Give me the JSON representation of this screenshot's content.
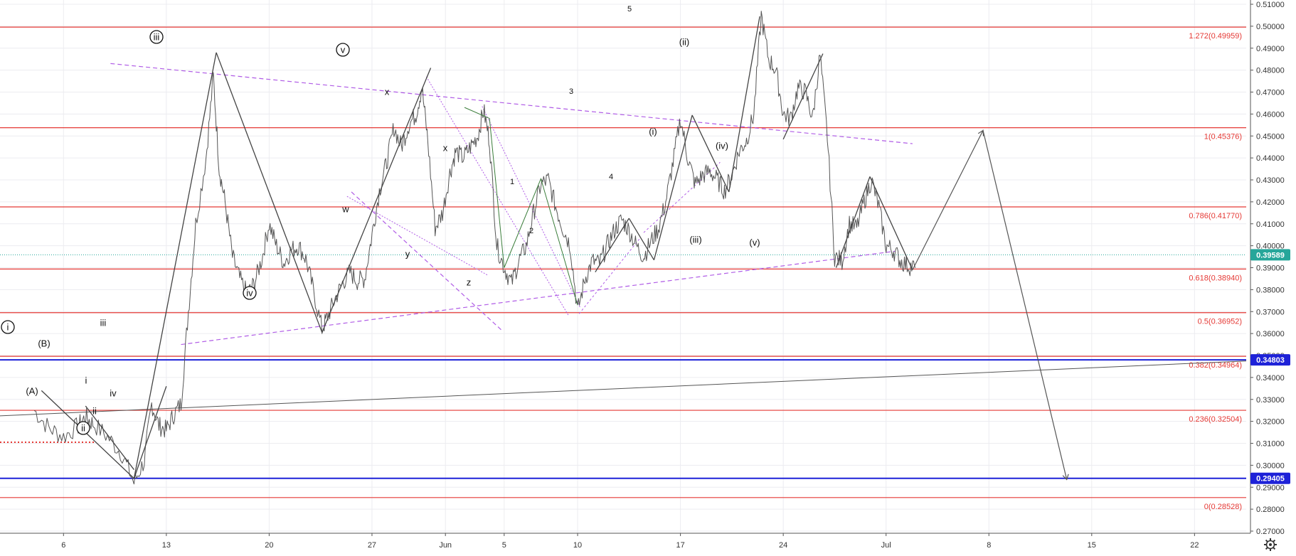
{
  "chart_data": {
    "type": "line",
    "y_axis": {
      "position": "right",
      "ylim": [
        0.2635,
        0.5125
      ],
      "ticks": [
        "0.51000",
        "0.50000",
        "0.49000",
        "0.48000",
        "0.47000",
        "0.46000",
        "0.45000",
        "0.44000",
        "0.43000",
        "0.42000",
        "0.41000",
        "0.40000",
        "0.39000",
        "0.38000",
        "0.37000",
        "0.36000",
        "0.35000",
        "0.34000",
        "0.33000",
        "0.32000",
        "0.31000",
        "0.30000",
        "0.29000",
        "0.28000",
        "0.27000"
      ]
    },
    "x_axis": {
      "start": "May 4",
      "end": "Jul 31",
      "ticks": [
        {
          "label": "6",
          "day": 2
        },
        {
          "label": "13",
          "day": 9
        },
        {
          "label": "20",
          "day": 16
        },
        {
          "label": "27",
          "day": 23
        },
        {
          "label": "Jun",
          "day": 28
        },
        {
          "label": "5",
          "day": 32
        },
        {
          "label": "10",
          "day": 37
        },
        {
          "label": "17",
          "day": 44
        },
        {
          "label": "24",
          "day": 51
        },
        {
          "label": "Jul",
          "day": 58
        },
        {
          "label": "8",
          "day": 65
        },
        {
          "label": "15",
          "day": 72
        },
        {
          "label": "22",
          "day": 79
        }
      ]
    },
    "fib_levels": [
      {
        "label": "1.272(0.49959)",
        "value": 0.49959
      },
      {
        "label": "1(0.45376)",
        "value": 0.45376
      },
      {
        "label": "0.786(0.41770)",
        "value": 0.4177
      },
      {
        "label": "0.618(0.38940)",
        "value": 0.3894
      },
      {
        "label": "0.5(0.36952)",
        "value": 0.36952
      },
      {
        "label": "0.382(0.34964)",
        "value": 0.34964
      },
      {
        "label": "0.236(0.32504)",
        "value": 0.32504
      },
      {
        "label": "0(0.28528)",
        "value": 0.28528
      }
    ],
    "price_badges": [
      {
        "label": "0.39589",
        "value": 0.39589,
        "color": "#26a69a"
      },
      {
        "label": "0.34803",
        "value": 0.34803,
        "color": "#1e22d8"
      },
      {
        "label": "0.29405",
        "value": 0.29405,
        "color": "#1e22d8"
      }
    ],
    "series": [
      {
        "color": "#555555",
        "points": [
          [
            0,
            0.325
          ],
          [
            1,
            0.317
          ],
          [
            2,
            0.313
          ],
          [
            3,
            0.318
          ],
          [
            3.5,
            0.322
          ],
          [
            4,
            0.319
          ],
          [
            5,
            0.313
          ],
          [
            6,
            0.305
          ],
          [
            6.8,
            0.292
          ],
          [
            7.5,
            0.302
          ],
          [
            8,
            0.328
          ],
          [
            8.5,
            0.318
          ],
          [
            9,
            0.316
          ],
          [
            9.5,
            0.323
          ],
          [
            10,
            0.328
          ],
          [
            10.5,
            0.37
          ],
          [
            11,
            0.41
          ],
          [
            11.7,
            0.44
          ],
          [
            12.2,
            0.477
          ],
          [
            12.6,
            0.435
          ],
          [
            13,
            0.42
          ],
          [
            13.5,
            0.395
          ],
          [
            14,
            0.385
          ],
          [
            14.5,
            0.378
          ],
          [
            15,
            0.383
          ],
          [
            15.5,
            0.394
          ],
          [
            16,
            0.41
          ],
          [
            16.5,
            0.4
          ],
          [
            17,
            0.392
          ],
          [
            17.5,
            0.398
          ],
          [
            18,
            0.4
          ],
          [
            18.5,
            0.394
          ],
          [
            19,
            0.38
          ],
          [
            19.6,
            0.362
          ],
          [
            20,
            0.368
          ],
          [
            20.5,
            0.376
          ],
          [
            21,
            0.383
          ],
          [
            21.5,
            0.388
          ],
          [
            22,
            0.384
          ],
          [
            22.5,
            0.385
          ],
          [
            23,
            0.405
          ],
          [
            23.5,
            0.425
          ],
          [
            24,
            0.438
          ],
          [
            24.5,
            0.454
          ],
          [
            25,
            0.445
          ],
          [
            25.5,
            0.455
          ],
          [
            26,
            0.46
          ],
          [
            26.4,
            0.472
          ],
          [
            26.8,
            0.448
          ],
          [
            27.3,
            0.408
          ],
          [
            27.8,
            0.415
          ],
          [
            28.3,
            0.433
          ],
          [
            28.7,
            0.443
          ],
          [
            29.2,
            0.44
          ],
          [
            29.7,
            0.445
          ],
          [
            30.2,
            0.45
          ],
          [
            30.6,
            0.462
          ],
          [
            31,
            0.448
          ],
          [
            31.5,
            0.4
          ],
          [
            32,
            0.39
          ],
          [
            32.5,
            0.383
          ],
          [
            33,
            0.393
          ],
          [
            33.5,
            0.4
          ],
          [
            34,
            0.415
          ],
          [
            34.5,
            0.428
          ],
          [
            35,
            0.43
          ],
          [
            35.5,
            0.418
          ],
          [
            36,
            0.408
          ],
          [
            36.5,
            0.4
          ],
          [
            37,
            0.37
          ],
          [
            37.5,
            0.385
          ],
          [
            38,
            0.393
          ],
          [
            38.5,
            0.392
          ],
          [
            39,
            0.4
          ],
          [
            39.5,
            0.407
          ],
          [
            40,
            0.412
          ],
          [
            40.5,
            0.407
          ],
          [
            41,
            0.4
          ],
          [
            41.5,
            0.395
          ],
          [
            42,
            0.402
          ],
          [
            42.5,
            0.408
          ],
          [
            43,
            0.42
          ],
          [
            43.5,
            0.438
          ],
          [
            44,
            0.458
          ],
          [
            44.5,
            0.44
          ],
          [
            45,
            0.428
          ],
          [
            45.5,
            0.432
          ],
          [
            46,
            0.434
          ],
          [
            46.5,
            0.43
          ],
          [
            47,
            0.425
          ],
          [
            47.5,
            0.432
          ],
          [
            48,
            0.443
          ],
          [
            48.5,
            0.448
          ],
          [
            49,
            0.46
          ],
          [
            49.5,
            0.505
          ],
          [
            50,
            0.485
          ],
          [
            50.5,
            0.48
          ],
          [
            51,
            0.46
          ],
          [
            51.5,
            0.458
          ],
          [
            52,
            0.472
          ],
          [
            52.5,
            0.47
          ],
          [
            53,
            0.458
          ],
          [
            53.5,
            0.487
          ],
          [
            54,
            0.45
          ],
          [
            54.5,
            0.395
          ],
          [
            55,
            0.393
          ],
          [
            55.5,
            0.41
          ],
          [
            56,
            0.408
          ],
          [
            56.5,
            0.42
          ],
          [
            57,
            0.43
          ],
          [
            57.5,
            0.418
          ],
          [
            58,
            0.4
          ],
          [
            58.5,
            0.398
          ],
          [
            59,
            0.393
          ],
          [
            59.5,
            0.391
          ],
          [
            60,
            0.39
          ]
        ]
      }
    ],
    "wave_labels": [
      {
        "text": "i",
        "circled": true
      },
      {
        "text": "ii",
        "circled": true
      },
      {
        "text": "iii",
        "circled": true
      },
      {
        "text": "iv",
        "circled": true
      },
      {
        "text": "v",
        "circled": true
      },
      {
        "text": "(A)"
      },
      {
        "text": "(B)"
      },
      {
        "text": "i"
      },
      {
        "text": "ii"
      },
      {
        "text": "iii"
      },
      {
        "text": "iv"
      },
      {
        "text": "w"
      },
      {
        "text": "x"
      },
      {
        "text": "y"
      },
      {
        "text": "x"
      },
      {
        "text": "z"
      },
      {
        "text": "1"
      },
      {
        "text": "2"
      },
      {
        "text": "3"
      },
      {
        "text": "4"
      },
      {
        "text": "5"
      },
      {
        "text": "(i)"
      },
      {
        "text": "(ii)"
      },
      {
        "text": "(iii)"
      },
      {
        "text": "(iv)"
      },
      {
        "text": "(v)"
      }
    ],
    "colors": {
      "fib_line": "#e53935",
      "trendline": "#b05ce6",
      "price_line": "#26a69a",
      "blue_level": "#1e22d8",
      "grid": "#ececf0",
      "path": "#444444"
    }
  },
  "settings_icon": "gear-icon"
}
